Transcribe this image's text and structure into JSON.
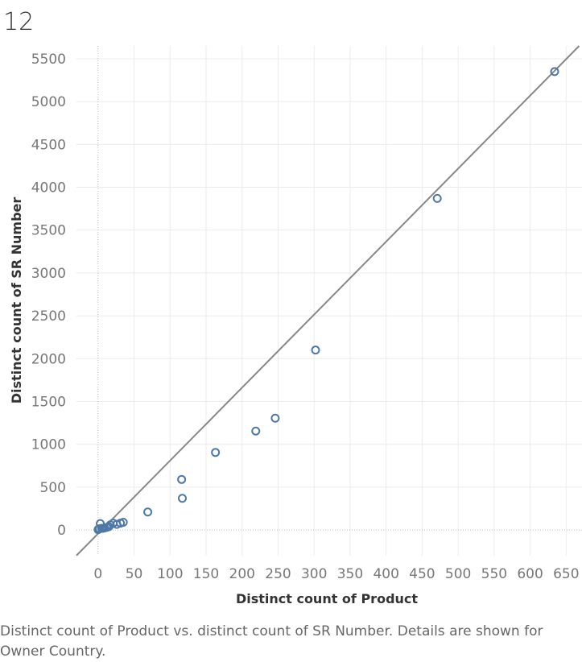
{
  "header": {
    "number": "12"
  },
  "caption": "Distinct count of Product vs. distinct count of SR Number.  Details are shown for Owner Country.",
  "chart_data": {
    "type": "scatter",
    "xlabel": "Distinct count of Product",
    "ylabel": "Distinct count of SR Number",
    "xlim": [
      -30,
      672
    ],
    "ylim": [
      -300,
      5650
    ],
    "x_ticks": [
      0,
      50,
      100,
      150,
      200,
      250,
      300,
      350,
      400,
      450,
      500,
      550,
      600,
      650
    ],
    "y_ticks": [
      0,
      500,
      1000,
      1500,
      2000,
      2500,
      3000,
      3500,
      4000,
      4500,
      5000,
      5500
    ],
    "grid": true,
    "marker_color": "#4e79a7",
    "trend_line": {
      "color": "#888888",
      "slope": 8.52,
      "intercept": -42
    },
    "points": [
      {
        "x": 634,
        "y": 5350
      },
      {
        "x": 471,
        "y": 3870
      },
      {
        "x": 302,
        "y": 2100
      },
      {
        "x": 246,
        "y": 1305
      },
      {
        "x": 219,
        "y": 1155
      },
      {
        "x": 163,
        "y": 905
      },
      {
        "x": 116,
        "y": 590
      },
      {
        "x": 117,
        "y": 370
      },
      {
        "x": 69,
        "y": 210
      },
      {
        "x": 35,
        "y": 90
      },
      {
        "x": 31,
        "y": 80
      },
      {
        "x": 26,
        "y": 65
      },
      {
        "x": 21,
        "y": 80
      },
      {
        "x": 17,
        "y": 60
      },
      {
        "x": 15,
        "y": 40
      },
      {
        "x": 12,
        "y": 30
      },
      {
        "x": 9,
        "y": 25
      },
      {
        "x": 7,
        "y": 20
      },
      {
        "x": 5,
        "y": 20
      },
      {
        "x": 3,
        "y": 75
      },
      {
        "x": 2,
        "y": 15
      },
      {
        "x": 1,
        "y": 10
      },
      {
        "x": 0,
        "y": 5
      }
    ]
  }
}
